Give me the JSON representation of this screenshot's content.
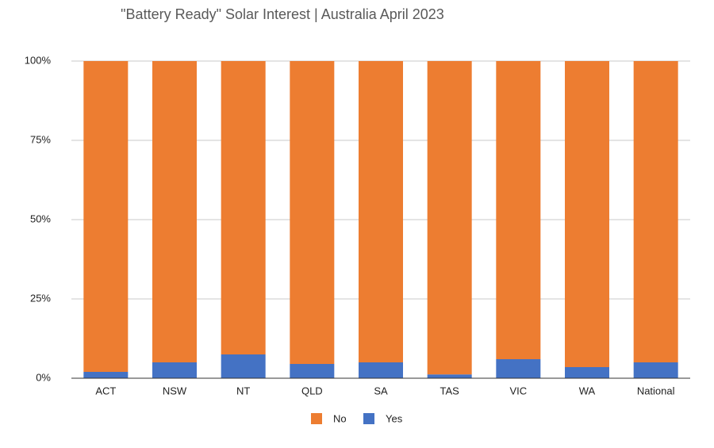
{
  "chart_data": {
    "type": "stacked_bar",
    "title": "\"Battery Ready\" Solar Interest | Australia April 2023",
    "categories": [
      "ACT",
      "NSW",
      "NT",
      "QLD",
      "SA",
      "TAS",
      "VIC",
      "WA",
      "National"
    ],
    "series": [
      {
        "name": "Yes",
        "color": "#4472c4",
        "values": [
          2,
          5,
          7.5,
          4.5,
          5,
          1.2,
          6,
          3.5,
          5
        ]
      },
      {
        "name": "No",
        "color": "#ed7d31",
        "values": [
          98,
          95,
          92.5,
          95.5,
          95,
          98.8,
          94,
          96.5,
          95
        ]
      }
    ],
    "ylim": [
      0,
      100
    ],
    "yticks": [
      {
        "value": 0,
        "label": "0%"
      },
      {
        "value": 25,
        "label": "25%"
      },
      {
        "value": 50,
        "label": "50%"
      },
      {
        "value": 75,
        "label": "75%"
      },
      {
        "value": 100,
        "label": "100%"
      }
    ],
    "grid": true,
    "legend": "bottom"
  }
}
